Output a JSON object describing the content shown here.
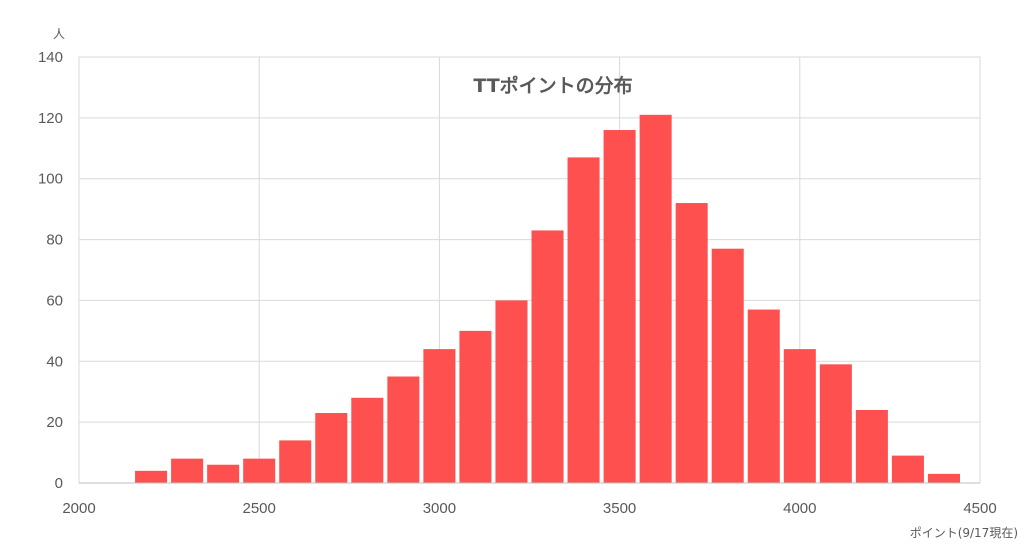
{
  "chart_data": {
    "type": "bar",
    "title": "TTポイントの分布",
    "xlabel": "ポイント(9/17現在)",
    "ylabel": "人",
    "xlim": [
      2000,
      4500
    ],
    "ylim": [
      0,
      140
    ],
    "x_ticks": [
      2000,
      2500,
      3000,
      3500,
      4000,
      4500
    ],
    "y_ticks": [
      0,
      20,
      40,
      60,
      80,
      100,
      120,
      140
    ],
    "bin_width": 100,
    "bins": [
      2200,
      2300,
      2400,
      2500,
      2600,
      2700,
      2800,
      2900,
      3000,
      3100,
      3200,
      3300,
      3400,
      3500,
      3600,
      3700,
      3800,
      3900,
      4000,
      4100,
      4200,
      4300,
      4400
    ],
    "values": [
      4,
      8,
      6,
      8,
      14,
      23,
      28,
      35,
      44,
      50,
      60,
      83,
      107,
      116,
      121,
      92,
      77,
      57,
      44,
      39,
      24,
      9,
      3
    ],
    "grid": true,
    "colors": {
      "bar": "#FF5050",
      "grid": "#D9D9D9",
      "text": "#595959"
    }
  }
}
